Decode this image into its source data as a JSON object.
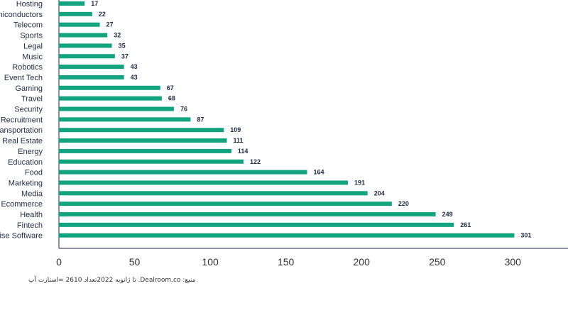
{
  "chart_data": {
    "type": "bar",
    "orientation": "horizontal",
    "categories": [
      "Hosting",
      "Semiconductors",
      "Telecom",
      "Sports",
      "Legal",
      "Music",
      "Robotics",
      "Event Tech",
      "Gaming",
      "Travel",
      "Security",
      "Recruitment",
      "Transportation",
      "Real Estate",
      "Energy",
      "Education",
      "Food",
      "Marketing",
      "Media",
      "Ecommerce",
      "Health",
      "Fintech",
      "Enterprise Software"
    ],
    "values": [
      17,
      22,
      27,
      32,
      35,
      37,
      43,
      43,
      67,
      68,
      76,
      87,
      109,
      111,
      114,
      122,
      164,
      191,
      204,
      220,
      249,
      261,
      301
    ],
    "xlim": [
      0,
      330
    ],
    "x_ticks": [
      0,
      50,
      100,
      150,
      200,
      250,
      300
    ],
    "grid": false,
    "bar_color": "#12a37f"
  },
  "source_note": "منبع:  Dealroom.co. تا ژانویه  2022تعداد  2610 =استارت آپ"
}
